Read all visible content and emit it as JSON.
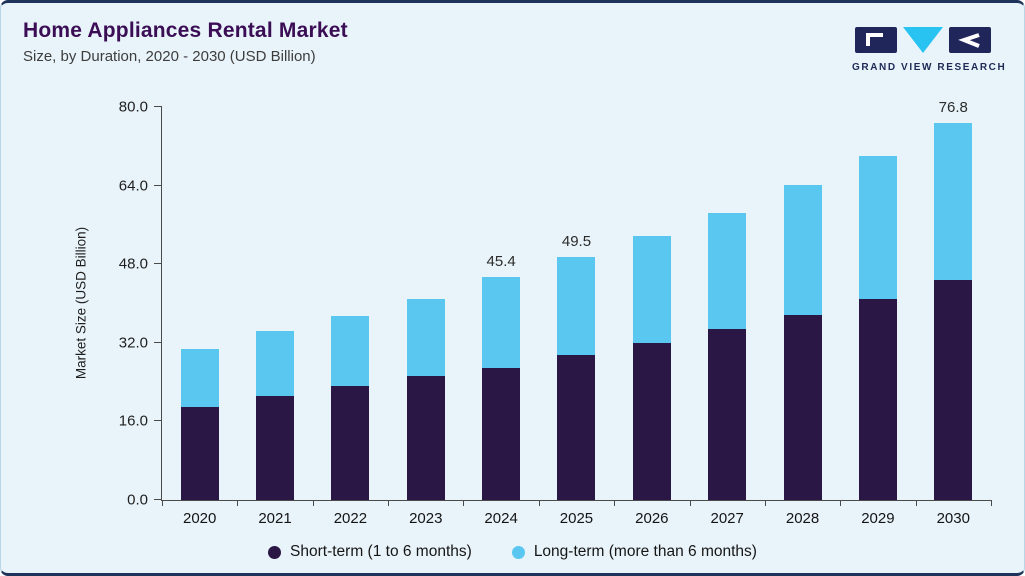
{
  "header": {
    "title": "Home Appliances Rental Market",
    "subtitle": "Size, by Duration, 2020 - 2030 (USD Billion)",
    "logo_text": "GRAND VIEW RESEARCH"
  },
  "chart_data": {
    "type": "bar",
    "stacked": true,
    "title": "Home Appliances Rental Market Size, by Duration, 2020 - 2030 (USD Billion)",
    "xlabel": "",
    "ylabel": "Market Size (USD Billion)",
    "ylim": [
      0,
      80
    ],
    "yticks": [
      0,
      16,
      32,
      48,
      64,
      80
    ],
    "ytick_labels": [
      "0.0",
      "16.0",
      "32.0",
      "48.0",
      "64.0",
      "80.0"
    ],
    "grid": false,
    "legend_position": "bottom",
    "categories": [
      "2020",
      "2021",
      "2022",
      "2023",
      "2024",
      "2025",
      "2026",
      "2027",
      "2028",
      "2029",
      "2030"
    ],
    "series": [
      {
        "name": "Short-term (1 to 6 months)",
        "color": "#2a1745",
        "values": [
          19.0,
          21.2,
          23.2,
          25.3,
          26.8,
          29.5,
          32.0,
          34.8,
          37.6,
          41.0,
          44.8
        ]
      },
      {
        "name": "Long-term (more than 6 months)",
        "color": "#5ac7f0",
        "values": [
          11.8,
          13.3,
          14.3,
          15.7,
          18.6,
          20.0,
          21.8,
          23.7,
          26.5,
          29.0,
          32.0
        ]
      }
    ],
    "totals": [
      30.8,
      34.5,
      37.5,
      41.0,
      45.4,
      49.5,
      53.8,
      58.5,
      64.1,
      70.0,
      76.8
    ],
    "bar_labels": {
      "2024": "45.4",
      "2025": "49.5",
      "2030": "76.8"
    }
  },
  "legend": {
    "items": [
      {
        "label": "Short-term (1 to 6 months)",
        "color": "#2a1745"
      },
      {
        "label": "Long-term (more than 6 months)",
        "color": "#5ac7f0"
      }
    ]
  }
}
